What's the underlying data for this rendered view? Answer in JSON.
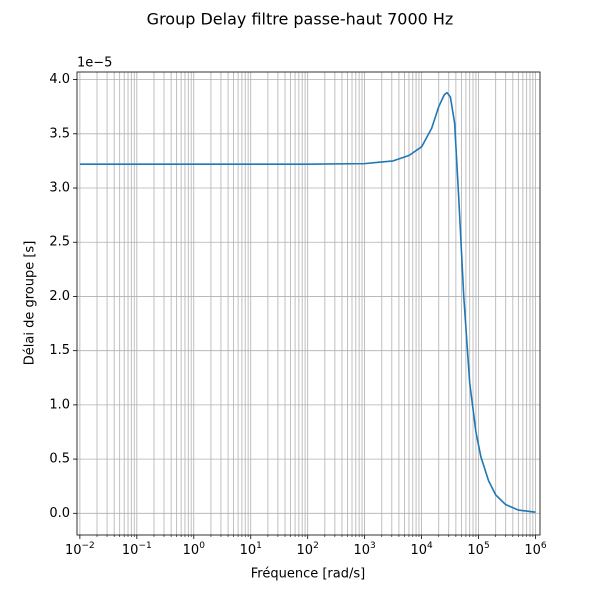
{
  "chart_data": {
    "type": "line",
    "title": "Group Delay filtre passe-haut 7000 Hz",
    "x_label": "Fréquence [rad/s]",
    "y_label": "Délai de groupe [s]",
    "y_offset_text": "1e−5",
    "x_scale": "log",
    "grid": true,
    "xlim": [
      0.0089,
      1200000
    ],
    "ylim": [
      -0.2,
      4.07
    ],
    "xticks": [
      {
        "value": 0.01,
        "label": "10",
        "exponent": "−2"
      },
      {
        "value": 0.1,
        "label": "10",
        "exponent": "−1"
      },
      {
        "value": 1,
        "label": "10",
        "exponent": "0"
      },
      {
        "value": 10,
        "label": "10",
        "exponent": "1"
      },
      {
        "value": 100,
        "label": "10",
        "exponent": "2"
      },
      {
        "value": 1000,
        "label": "10",
        "exponent": "3"
      },
      {
        "value": 10000,
        "label": "10",
        "exponent": "4"
      },
      {
        "value": 100000,
        "label": "10",
        "exponent": "5"
      },
      {
        "value": 1000000,
        "label": "10",
        "exponent": "6"
      }
    ],
    "xminor_ticks": [
      0.02,
      0.03,
      0.04,
      0.05,
      0.06,
      0.07,
      0.08,
      0.09,
      0.2,
      0.3,
      0.4,
      0.5,
      0.6,
      0.7,
      0.8,
      0.9,
      2,
      3,
      4,
      5,
      6,
      7,
      8,
      9,
      20,
      30,
      40,
      50,
      60,
      70,
      80,
      90,
      200,
      300,
      400,
      500,
      600,
      700,
      800,
      900,
      2000,
      3000,
      4000,
      5000,
      6000,
      7000,
      8000,
      9000,
      20000,
      30000,
      40000,
      50000,
      60000,
      70000,
      80000,
      90000,
      200000,
      300000,
      400000,
      500000,
      600000,
      700000,
      800000,
      900000
    ],
    "yticks": [
      {
        "value": 0,
        "label": "0.0"
      },
      {
        "value": 0.5,
        "label": "0.5"
      },
      {
        "value": 1,
        "label": "1.0"
      },
      {
        "value": 1.5,
        "label": "1.5"
      },
      {
        "value": 2,
        "label": "2.0"
      },
      {
        "value": 2.5,
        "label": "2.5"
      },
      {
        "value": 3,
        "label": "3.0"
      },
      {
        "value": 3.5,
        "label": "3.5"
      },
      {
        "value": 4,
        "label": "4.0"
      }
    ],
    "x": [
      0.01,
      1,
      100,
      1000,
      3162,
      6000,
      10000,
      15000,
      20000,
      25000,
      28000,
      32000,
      38000,
      45000,
      55000,
      70000,
      90000,
      110000,
      150000,
      200000,
      300000,
      500000,
      1000000
    ],
    "series": [
      {
        "color": "#1f77b4",
        "values": [
          3.22,
          3.22,
          3.22,
          3.225,
          3.25,
          3.3,
          3.38,
          3.55,
          3.75,
          3.86,
          3.88,
          3.84,
          3.6,
          2.9,
          2.0,
          1.2,
          0.75,
          0.52,
          0.3,
          0.17,
          0.08,
          0.03,
          0.01
        ]
      }
    ]
  }
}
